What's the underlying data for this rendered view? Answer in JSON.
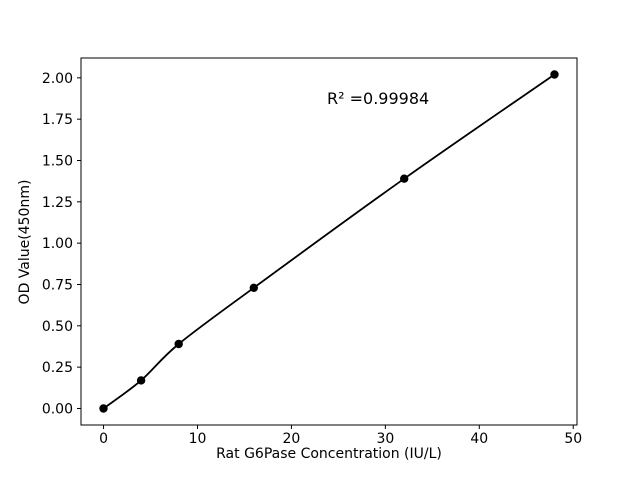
{
  "figure": {
    "background": "#ffffff"
  },
  "chart_data": {
    "type": "scatter",
    "title": "",
    "xlabel": "Rat G6Pase Concentration (IU/L)",
    "ylabel": "OD Value(450nm)",
    "annotation": "R² =0.99984",
    "x": [
      0,
      4,
      8,
      16,
      32,
      48
    ],
    "y": [
      0.0,
      0.17,
      0.39,
      0.73,
      1.39,
      2.02
    ],
    "fit_line": true,
    "xticks": [
      0,
      10,
      20,
      30,
      40,
      50
    ],
    "xtick_labels": [
      "0",
      "10",
      "20",
      "30",
      "40",
      "50"
    ],
    "yticks": [
      0.0,
      0.25,
      0.5,
      0.75,
      1.0,
      1.25,
      1.5,
      1.75,
      2.0
    ],
    "ytick_labels": [
      "0.00",
      "0.25",
      "0.50",
      "0.75",
      "1.00",
      "1.25",
      "1.50",
      "1.75",
      "2.00"
    ],
    "xlim": [
      -2.4,
      50.4
    ],
    "ylim": [
      -0.1,
      2.12
    ],
    "grid": false,
    "legend": false,
    "marker_color": "#000000",
    "line_color": "#000000",
    "text_color": "#000000"
  }
}
